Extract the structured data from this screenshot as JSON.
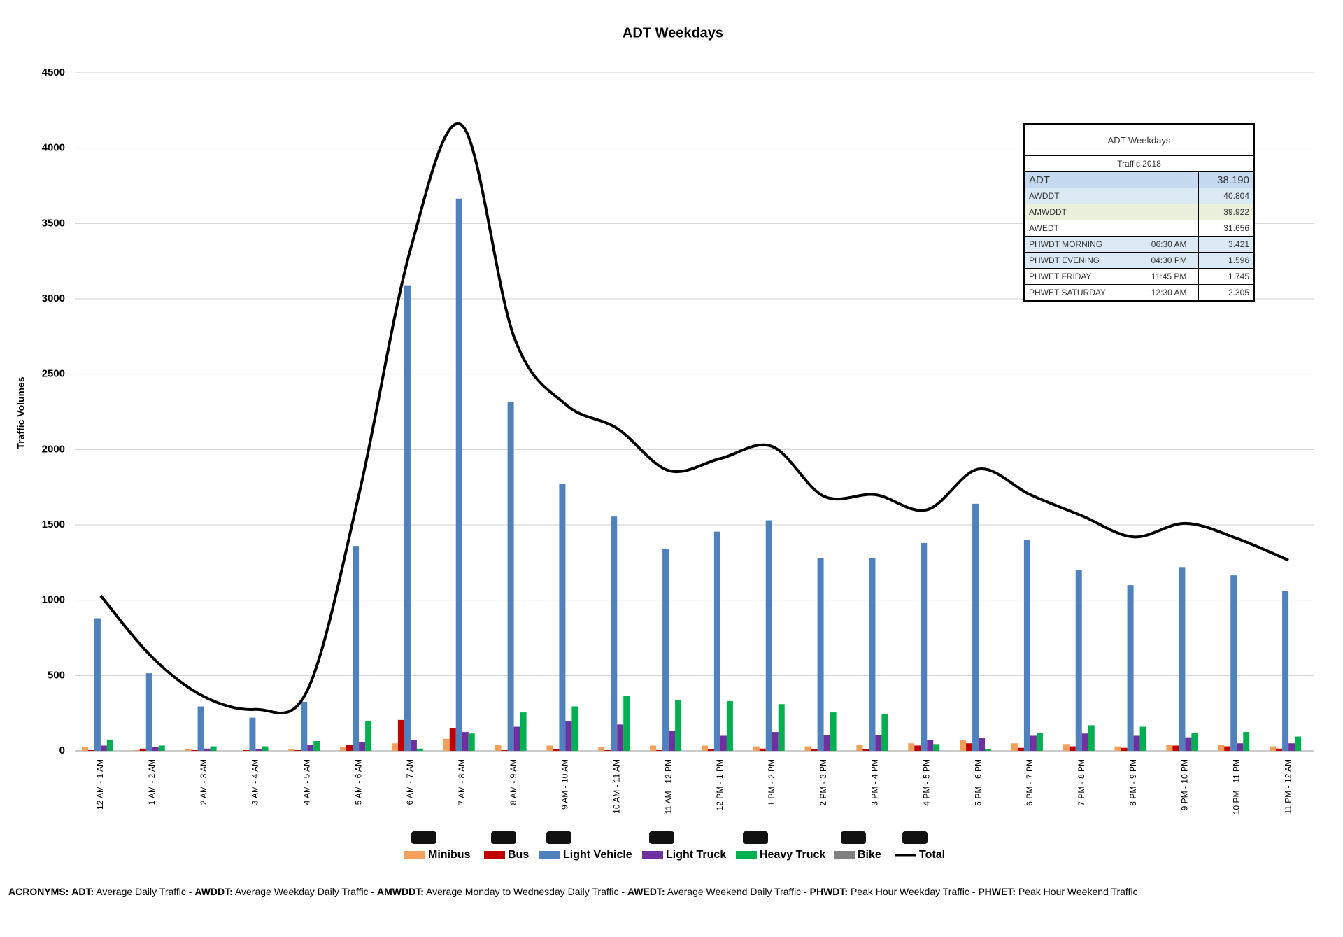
{
  "chart_data": {
    "type": "bar",
    "title": "ADT Weekdays",
    "y_label": "Traffic Volumes",
    "categories": [
      "12 AM - 1 AM",
      "1 AM - 2 AM",
      "2 AM - 3 AM",
      "3 AM - 4 AM",
      "4 AM - 5 AM",
      "5 AM - 6 AM",
      "6 AM - 7 AM",
      "7 AM - 8 AM",
      "8 AM - 9 AM",
      "9 AM - 10 AM",
      "10 AM - 11 AM",
      "11 AM - 12 PM",
      "12 PM - 1 PM",
      "1 PM - 2 PM",
      "2 PM - 3 PM",
      "3 PM - 4 PM",
      "4 PM - 5 PM",
      "5 PM - 6 PM",
      "6 PM - 7 PM",
      "7 PM - 8 PM",
      "8 PM - 9 PM",
      "9 PM - 10 PM",
      "10 PM - 11 PM",
      "11 PM - 12 AM"
    ],
    "series": [
      {
        "name": "Minibus",
        "color": "#f5a05a",
        "values": [
          25,
          5,
          10,
          0,
          10,
          25,
          50,
          80,
          40,
          35,
          25,
          35,
          35,
          30,
          30,
          40,
          50,
          70,
          50,
          45,
          30,
          40,
          40,
          30
        ]
      },
      {
        "name": "Bus",
        "color": "#c00000",
        "values": [
          5,
          15,
          5,
          5,
          5,
          40,
          205,
          150,
          5,
          10,
          5,
          5,
          10,
          15,
          10,
          10,
          35,
          50,
          20,
          30,
          20,
          35,
          30,
          15
        ]
      },
      {
        "name": "Light Vehicle",
        "color": "#4f81bd",
        "values": [
          880,
          515,
          295,
          220,
          325,
          1360,
          3090,
          3665,
          2315,
          1770,
          1555,
          1340,
          1455,
          1530,
          1280,
          1280,
          1380,
          1640,
          1400,
          1200,
          1100,
          1220,
          1165,
          1060
        ]
      },
      {
        "name": "Light Truck",
        "color": "#7030a0",
        "values": [
          35,
          25,
          15,
          10,
          40,
          60,
          70,
          125,
          160,
          195,
          175,
          135,
          100,
          125,
          105,
          105,
          70,
          85,
          100,
          115,
          100,
          90,
          50,
          50
        ]
      },
      {
        "name": "Heavy Truck",
        "color": "#00b050",
        "values": [
          75,
          35,
          30,
          30,
          65,
          200,
          15,
          115,
          255,
          295,
          365,
          335,
          330,
          310,
          255,
          245,
          45,
          10,
          120,
          170,
          160,
          120,
          125,
          95
        ]
      },
      {
        "name": "Bike",
        "color": "#808080",
        "values": [
          0,
          0,
          0,
          0,
          0,
          0,
          0,
          0,
          0,
          0,
          0,
          0,
          0,
          0,
          0,
          0,
          0,
          0,
          0,
          0,
          0,
          0,
          0,
          0
        ]
      },
      {
        "name": "Total",
        "type": "line",
        "color": "#000000",
        "values": [
          1030,
          620,
          360,
          275,
          400,
          1700,
          3330,
          4150,
          2750,
          2300,
          2140,
          1860,
          1940,
          2020,
          1690,
          1700,
          1600,
          1870,
          1700,
          1560,
          1420,
          1510,
          1410,
          1265
        ]
      }
    ],
    "ylim": [
      0,
      4500
    ],
    "yticks": [
      0,
      500,
      1000,
      1500,
      2000,
      2500,
      3000,
      3500,
      4000,
      4500
    ],
    "grid": true,
    "legend": "bottom"
  },
  "table": {
    "title": "ADT Weekdays",
    "subtitle": "Traffic 2018",
    "rows": [
      [
        "ADT",
        "38.190"
      ],
      [
        "AWDDT",
        "40.804"
      ],
      [
        "AMWDDT",
        "39.922"
      ],
      [
        "AWEDT",
        "31.656"
      ],
      [
        "PHWDT MORNING",
        "06:30 AM",
        "3.421"
      ],
      [
        "PHWDT EVENING",
        "04:30 PM",
        "1.596"
      ],
      [
        "PHWET FRIDAY",
        "11:45 PM",
        "1.745"
      ],
      [
        "PHWET SATURDAY",
        "12:30 AM",
        "2.305"
      ]
    ],
    "row_colors": [
      "#c5d9f1",
      "#dbe9f5",
      "#eaf0dc",
      "#ffffff",
      "#dbe9f5",
      "#dbe9f5",
      "#ffffff",
      "#ffffff"
    ]
  },
  "footnote": {
    "label": "ACRONYMS:",
    "items": [
      {
        "term": "ADT:",
        "definition": "Average Daily Traffic -"
      },
      {
        "term": "AWDDT:",
        "definition": "Average Weekday Daily Traffic -"
      },
      {
        "term": "AMWDDT:",
        "definition": "Average Monday to Wednesday Daily Traffic -"
      },
      {
        "term": "AWEDT:",
        "definition": "Average Weekend Daily Traffic -"
      },
      {
        "term": "PHWDT:",
        "definition": "Peak Hour Weekday Traffic -"
      },
      {
        "term": "PHWET:",
        "definition": "Peak Hour Weekend Traffic"
      }
    ]
  }
}
